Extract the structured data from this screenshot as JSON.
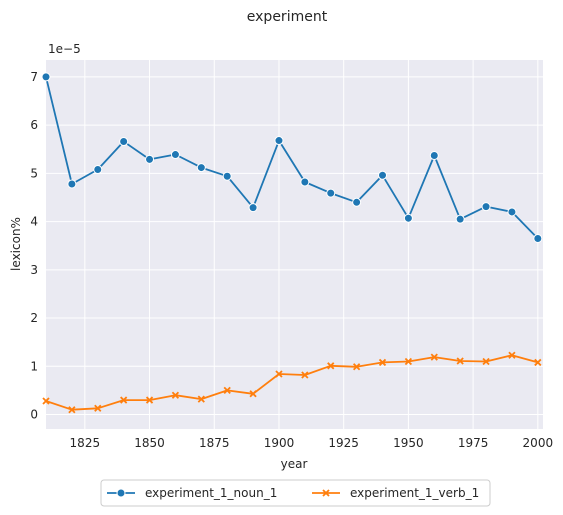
{
  "chart_data": {
    "type": "line",
    "title": "experiment",
    "xlabel": "year",
    "ylabel": "lexicon%",
    "y_offset_label": "1e−5",
    "xlim": [
      1810,
      2002
    ],
    "ylim": [
      -0.3,
      7.35
    ],
    "x_ticks": [
      1825,
      1850,
      1875,
      1900,
      1925,
      1950,
      1975,
      2000
    ],
    "y_ticks": [
      0,
      1,
      2,
      3,
      4,
      5,
      6,
      7
    ],
    "grid": true,
    "legend_position": "bottom-center",
    "x": [
      1810,
      1820,
      1830,
      1840,
      1850,
      1860,
      1870,
      1880,
      1890,
      1900,
      1910,
      1920,
      1930,
      1940,
      1950,
      1960,
      1970,
      1980,
      1990,
      2000
    ],
    "series": [
      {
        "name": "experiment_1_noun_1",
        "color": "#1f77b4",
        "marker": "circle",
        "values": [
          7.0,
          4.78,
          5.08,
          5.66,
          5.29,
          5.39,
          5.12,
          4.94,
          4.29,
          5.68,
          4.82,
          4.59,
          4.4,
          4.96,
          4.07,
          5.37,
          4.05,
          4.31,
          4.2,
          3.65
        ]
      },
      {
        "name": "experiment_1_verb_1",
        "color": "#ff7f0e",
        "marker": "x",
        "values": [
          0.28,
          0.1,
          0.13,
          0.3,
          0.3,
          0.4,
          0.32,
          0.5,
          0.43,
          0.84,
          0.82,
          1.01,
          0.99,
          1.08,
          1.1,
          1.19,
          1.11,
          1.1,
          1.23,
          1.08
        ]
      }
    ]
  }
}
